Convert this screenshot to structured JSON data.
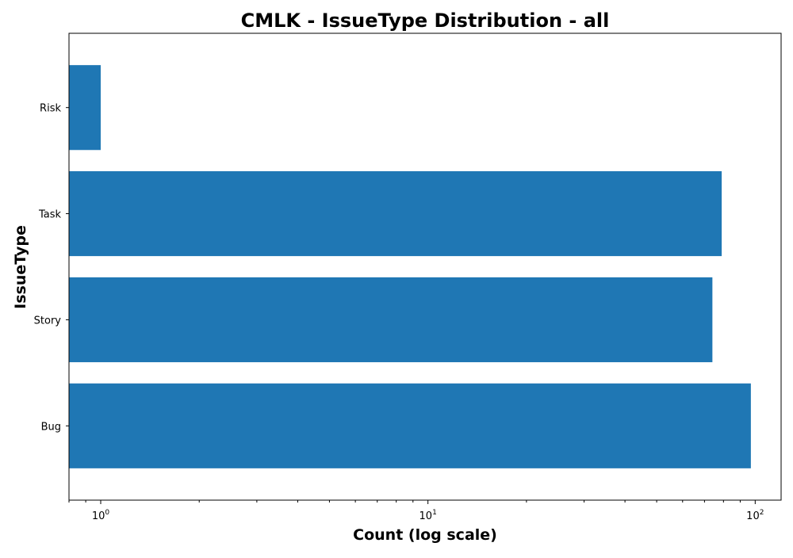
{
  "chart_data": {
    "type": "bar",
    "orientation": "horizontal",
    "title": "CMLK - IssueType Distribution - all",
    "xlabel": "Count (log scale)",
    "ylabel": "IssueType",
    "x_scale": "log",
    "xlim": [
      0.8,
      120
    ],
    "x_ticks": [
      {
        "value": 1,
        "base": "10",
        "exp": "0"
      },
      {
        "value": 10,
        "base": "10",
        "exp": "1"
      },
      {
        "value": 100,
        "base": "10",
        "exp": "2"
      }
    ],
    "categories": [
      "Bug",
      "Story",
      "Task",
      "Risk"
    ],
    "values": [
      97,
      74,
      79,
      1
    ],
    "bar_color": "#1f77b4",
    "grid": false
  }
}
